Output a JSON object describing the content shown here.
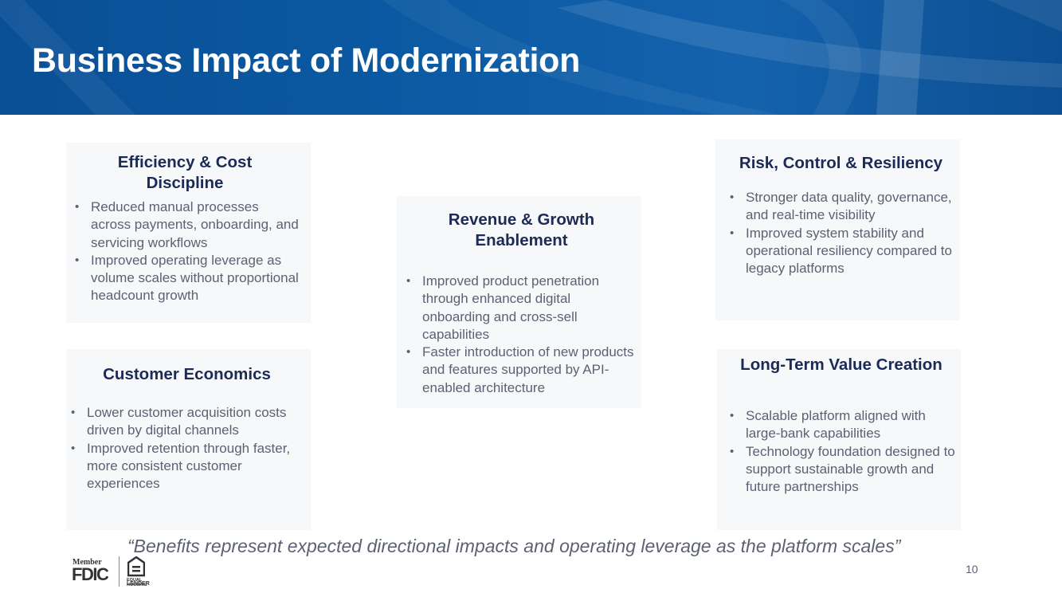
{
  "slide": {
    "title": "Business Impact of Modernization",
    "page_number": "10",
    "footnote": "“Benefits represent expected directional impacts and operating leverage as the platform scales”"
  },
  "cards": {
    "efficiency": {
      "title": "Efficiency & Cost Discipline",
      "bullets": [
        "Reduced manual processes across payments, onboarding, and servicing workflows",
        "Improved operating leverage as volume scales without proportional headcount growth"
      ]
    },
    "customer": {
      "title": "Customer Economics",
      "bullets": [
        "Lower customer acquisition costs driven by digital channels",
        "Improved retention through faster, more consistent customer experiences"
      ]
    },
    "revenue": {
      "title": "Revenue & Growth Enablement",
      "bullets": [
        "Improved product penetration through enhanced digital onboarding and cross-sell capabilities",
        "Faster introduction of new products and features supported by API-enabled architecture"
      ]
    },
    "risk": {
      "title": "Risk, Control & Resiliency",
      "bullets": [
        "Stronger data quality, governance, and real-time visibility",
        "Improved system stability and operational resiliency compared to legacy platforms"
      ]
    },
    "longterm": {
      "title": "Long-Term Value Creation",
      "bullets": [
        "Scalable platform aligned with large-bank capabilities",
        "Technology foundation designed to support sustainable growth and future partnerships"
      ]
    }
  },
  "footer": {
    "member_text": "Member",
    "fdic_text": "FDIC",
    "ehl_line1": "EQUAL HOUSING",
    "ehl_line2": "LENDER"
  },
  "colors": {
    "banner": "#0b5aa3",
    "card_bg": "#f7f8fa",
    "heading": "#1c2a56",
    "body_text": "#5c6173"
  }
}
